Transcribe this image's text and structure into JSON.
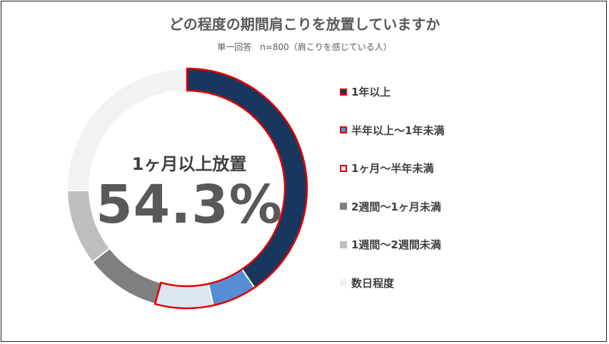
{
  "title": "どの程度の期間肩こりを放置していますか",
  "subtitle": "単一回答　n=800（肩こりを感じている人）",
  "center": {
    "label": "1ヶ月以上放置",
    "value": "54.3%"
  },
  "chart_data": {
    "type": "pie",
    "donut": true,
    "categories": [
      "1年以上",
      "半年以上～1年未満",
      "1ヶ月～半年未満",
      "2週間～1ヶ月未満",
      "1週間～2週間未満",
      "数日程度"
    ],
    "values": [
      40.5,
      6.0,
      7.8,
      10.2,
      10.2,
      25.3
    ],
    "colors": [
      "#17375e",
      "#558ed5",
      "#dce6f2",
      "#7f7f7f",
      "#bfbfbf",
      "#f2f2f2"
    ],
    "highlighted": [
      0,
      1,
      2
    ],
    "highlight_color": "#e00000",
    "legend_position": "right"
  }
}
